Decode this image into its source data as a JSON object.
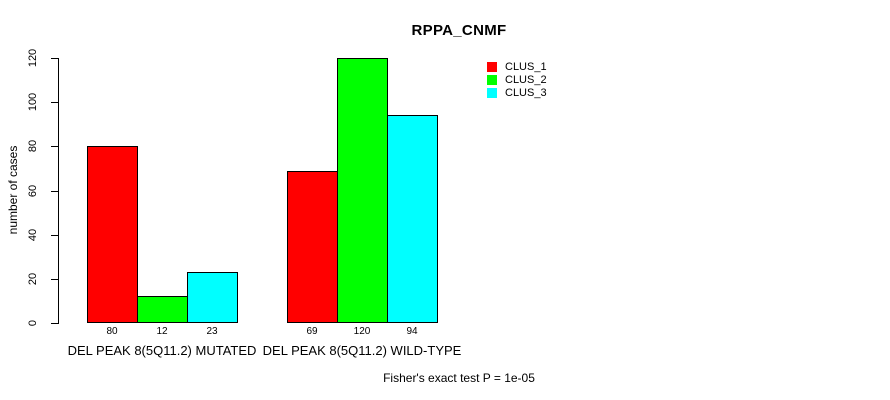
{
  "chart_data": {
    "type": "bar",
    "title": "RPPA_CNMF",
    "ylabel": "number of cases",
    "xlabel": "",
    "categories": [
      "DEL PEAK  8(5Q11.2) MUTATED",
      "DEL PEAK  8(5Q11.2) WILD-TYPE"
    ],
    "series": [
      {
        "name": "CLUS_1",
        "color": "#ff0000",
        "values": [
          80,
          69
        ]
      },
      {
        "name": "CLUS_2",
        "color": "#00ff00",
        "values": [
          12,
          120
        ]
      },
      {
        "name": "CLUS_3",
        "color": "#00ffff",
        "values": [
          23,
          94
        ]
      }
    ],
    "bar_value_labels": [
      [
        80,
        12,
        23
      ],
      [
        69,
        120,
        94
      ]
    ],
    "yticks": [
      0,
      20,
      40,
      60,
      80,
      100,
      120
    ],
    "ylim": [
      0,
      120
    ],
    "grid": false,
    "legend_position": "top-right-inside",
    "legend_entries": [
      "CLUS_1",
      "CLUS_2",
      "CLUS_3"
    ],
    "annotation": "Fisher's exact test P = 1e-05",
    "bar_border_color": "#000000",
    "text_color": "#000000",
    "background_color": "#ffffff"
  }
}
